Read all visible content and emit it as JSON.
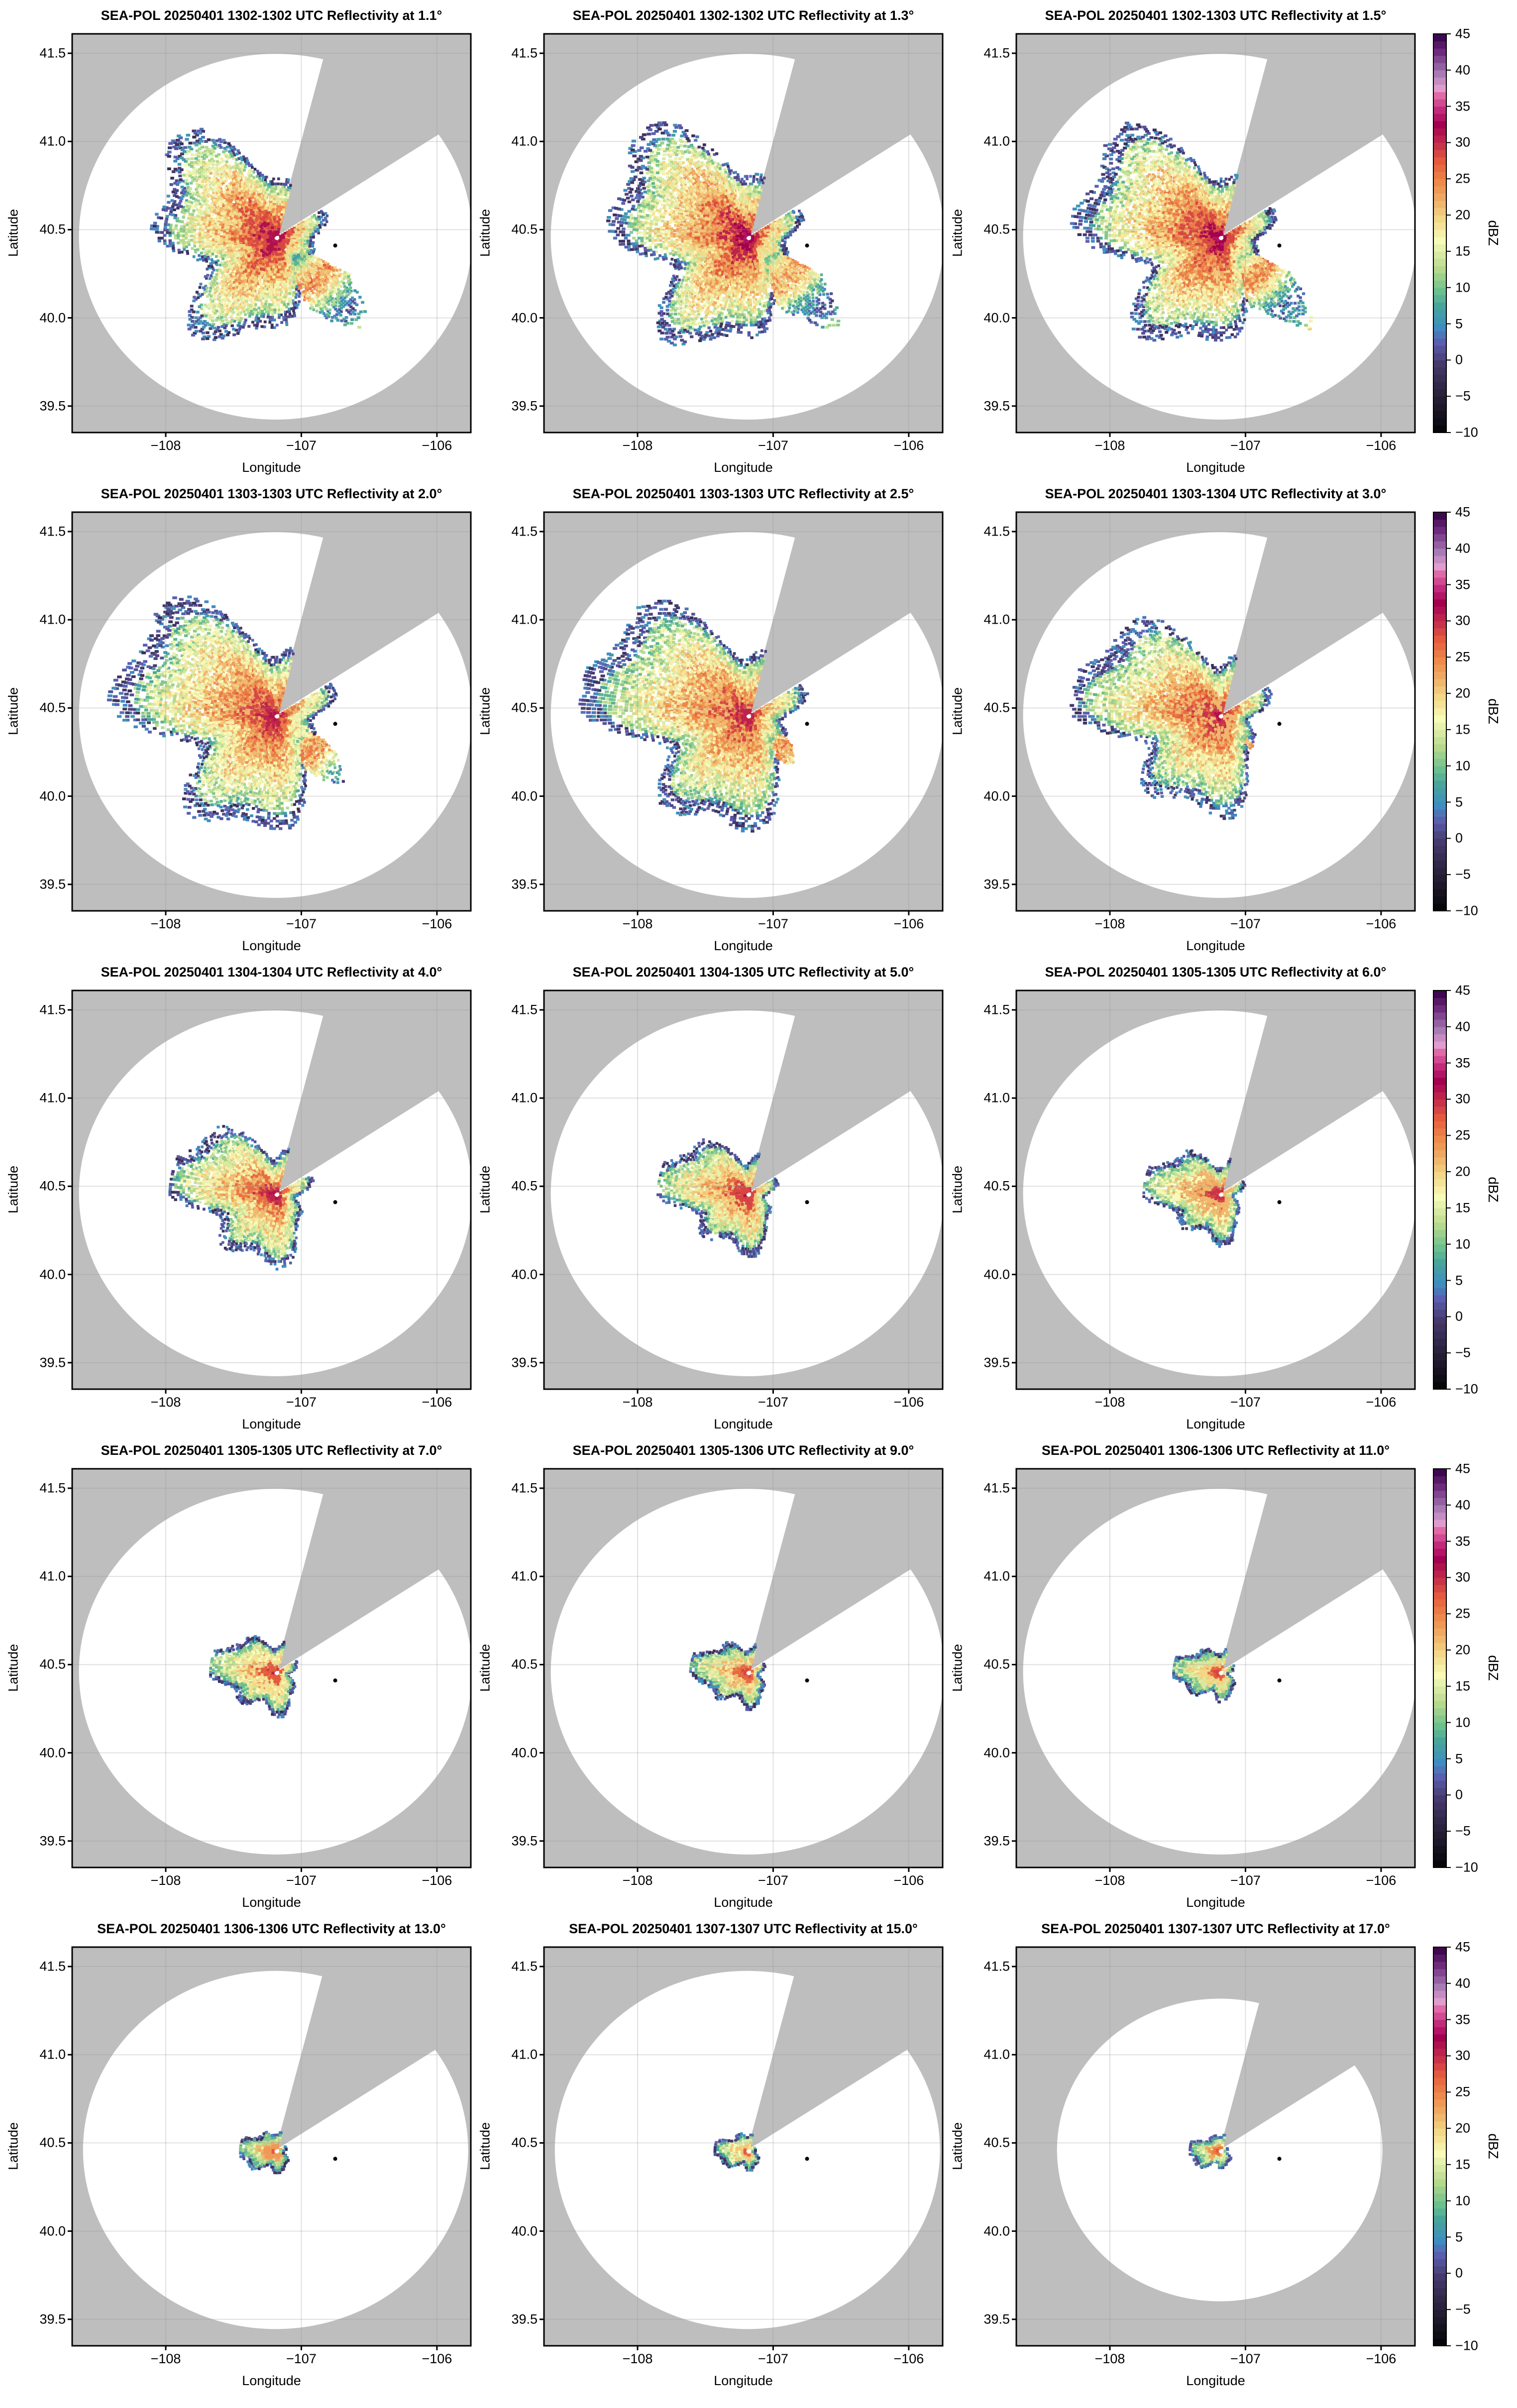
{
  "chart_data": [
    {
      "type": "heatmap",
      "title": "SEA-POL 20250401 1302-1302 UTC Reflectivity at 1.1°",
      "elevation_deg": 1.1
    },
    {
      "type": "heatmap",
      "title": "SEA-POL 20250401 1302-1302 UTC Reflectivity at 1.3°",
      "elevation_deg": 1.3
    },
    {
      "type": "heatmap",
      "title": "SEA-POL 20250401 1302-1303 UTC Reflectivity at 1.5°",
      "elevation_deg": 1.5
    },
    {
      "type": "heatmap",
      "title": "SEA-POL 20250401 1303-1303 UTC Reflectivity at 2.0°",
      "elevation_deg": 2.0
    },
    {
      "type": "heatmap",
      "title": "SEA-POL 20250401 1303-1303 UTC Reflectivity at 2.5°",
      "elevation_deg": 2.5
    },
    {
      "type": "heatmap",
      "title": "SEA-POL 20250401 1303-1304 UTC Reflectivity at 3.0°",
      "elevation_deg": 3.0
    },
    {
      "type": "heatmap",
      "title": "SEA-POL 20250401 1304-1304 UTC Reflectivity at 4.0°",
      "elevation_deg": 4.0
    },
    {
      "type": "heatmap",
      "title": "SEA-POL 20250401 1304-1305 UTC Reflectivity at 5.0°",
      "elevation_deg": 5.0
    },
    {
      "type": "heatmap",
      "title": "SEA-POL 20250401 1305-1305 UTC Reflectivity at 6.0°",
      "elevation_deg": 6.0
    },
    {
      "type": "heatmap",
      "title": "SEA-POL 20250401 1305-1305 UTC Reflectivity at 7.0°",
      "elevation_deg": 7.0
    },
    {
      "type": "heatmap",
      "title": "SEA-POL 20250401 1305-1306 UTC Reflectivity at 9.0°",
      "elevation_deg": 9.0
    },
    {
      "type": "heatmap",
      "title": "SEA-POL 20250401 1306-1306 UTC Reflectivity at 11.0°",
      "elevation_deg": 11.0
    },
    {
      "type": "heatmap",
      "title": "SEA-POL 20250401 1306-1306 UTC Reflectivity at 13.0°",
      "elevation_deg": 13.0
    },
    {
      "type": "heatmap",
      "title": "SEA-POL 20250401 1307-1307 UTC Reflectivity at 15.0°",
      "elevation_deg": 15.0
    },
    {
      "type": "heatmap",
      "title": "SEA-POL 20250401 1307-1307 UTC Reflectivity at 17.0°",
      "elevation_deg": 17.0
    }
  ],
  "axes": {
    "xlabel": "Longitude",
    "ylabel": "Latitude",
    "xlim": [
      -108.69,
      -105.75
    ],
    "ylim": [
      39.35,
      41.61
    ],
    "xticks": [
      {
        "v": -108,
        "label": "−108"
      },
      {
        "v": -107,
        "label": "−107"
      },
      {
        "v": -106,
        "label": "−106"
      }
    ],
    "yticks": [
      {
        "v": 41.5,
        "label": "41.5"
      },
      {
        "v": 41.0,
        "label": "41.0"
      },
      {
        "v": 40.5,
        "label": "40.5"
      },
      {
        "v": 40.0,
        "label": "40.0"
      },
      {
        "v": 39.5,
        "label": "39.5"
      }
    ],
    "radar_location": [
      -107.19,
      40.46
    ],
    "marker_location": [
      -106.75,
      40.41
    ]
  },
  "colorbar": {
    "label": "dBZ",
    "range": [
      -10,
      45
    ],
    "ticks": [
      {
        "v": 45,
        "label": "45"
      },
      {
        "v": 40,
        "label": "40"
      },
      {
        "v": 35,
        "label": "35"
      },
      {
        "v": 30,
        "label": "30"
      },
      {
        "v": 25,
        "label": "25"
      },
      {
        "v": 20,
        "label": "20"
      },
      {
        "v": 15,
        "label": "15"
      },
      {
        "v": 10,
        "label": "10"
      },
      {
        "v": 5,
        "label": "5"
      },
      {
        "v": 0,
        "label": "0"
      },
      {
        "v": -5,
        "label": "−5"
      },
      {
        "v": -10,
        "label": "−10"
      }
    ],
    "stops": [
      [
        -10,
        "#000000"
      ],
      [
        -5,
        "#231d33"
      ],
      [
        0,
        "#46396b"
      ],
      [
        3,
        "#5a5fb0"
      ],
      [
        5,
        "#3f8cc0"
      ],
      [
        8,
        "#47a69a"
      ],
      [
        10,
        "#6cbf8f"
      ],
      [
        13,
        "#b4d98c"
      ],
      [
        17,
        "#f8fab8"
      ],
      [
        20,
        "#f2d887"
      ],
      [
        23,
        "#eea862"
      ],
      [
        25,
        "#ee8a4a"
      ],
      [
        28,
        "#e35a3e"
      ],
      [
        30,
        "#c9334a"
      ],
      [
        33,
        "#a30050"
      ],
      [
        35,
        "#c22a7c"
      ],
      [
        37,
        "#e06aa8"
      ],
      [
        38,
        "#e09ccf"
      ],
      [
        40,
        "#a97bb5"
      ],
      [
        43,
        "#6d2b7e"
      ],
      [
        45,
        "#3e0750"
      ]
    ]
  },
  "colors": {
    "background": "#bebebe",
    "coverage": "#ffffff",
    "grid": "#999999"
  }
}
